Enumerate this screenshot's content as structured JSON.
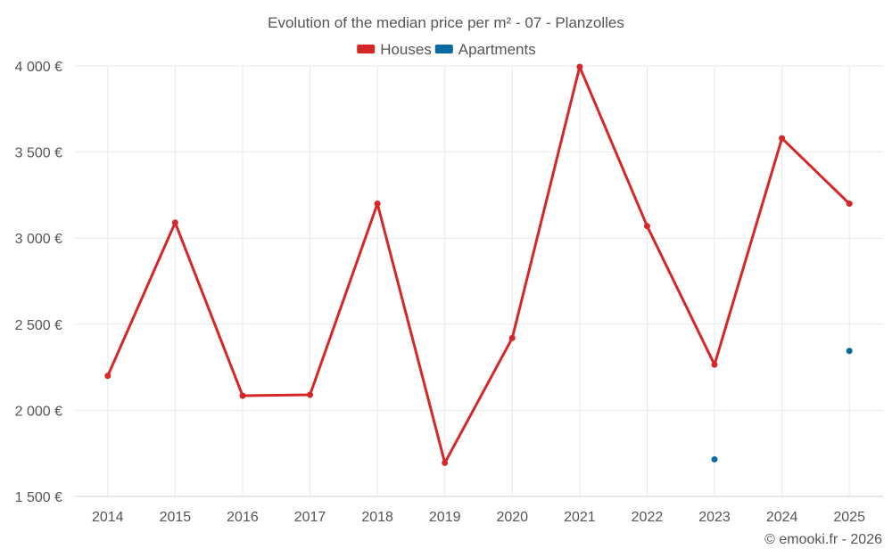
{
  "chart_data": {
    "type": "line",
    "title": "Evolution of the median price per m² - 07 - Planzolles",
    "categories": [
      "2014",
      "2015",
      "2016",
      "2017",
      "2018",
      "2019",
      "2020",
      "2021",
      "2022",
      "2023",
      "2024",
      "2025"
    ],
    "series": [
      {
        "name": "Houses",
        "color": "#d62728",
        "values": [
          2200,
          3090,
          2085,
          2090,
          3200,
          1695,
          2420,
          3995,
          3070,
          2265,
          3580,
          3200
        ]
      },
      {
        "name": "Apartments",
        "color": "#0a6aa1",
        "values": [
          null,
          null,
          null,
          null,
          null,
          null,
          null,
          null,
          null,
          1715,
          null,
          2345
        ]
      }
    ],
    "ylim": [
      1500,
      4000
    ],
    "yticks": [
      1500,
      2000,
      2500,
      3000,
      3500,
      4000
    ],
    "ytick_labels": [
      "1 500 €",
      "2 000 €",
      "2 500 €",
      "3 000 €",
      "3 500 €",
      "4 000 €"
    ],
    "grid": true,
    "legend_position": "top-center",
    "credit": "© emooki.fr - 2026"
  }
}
